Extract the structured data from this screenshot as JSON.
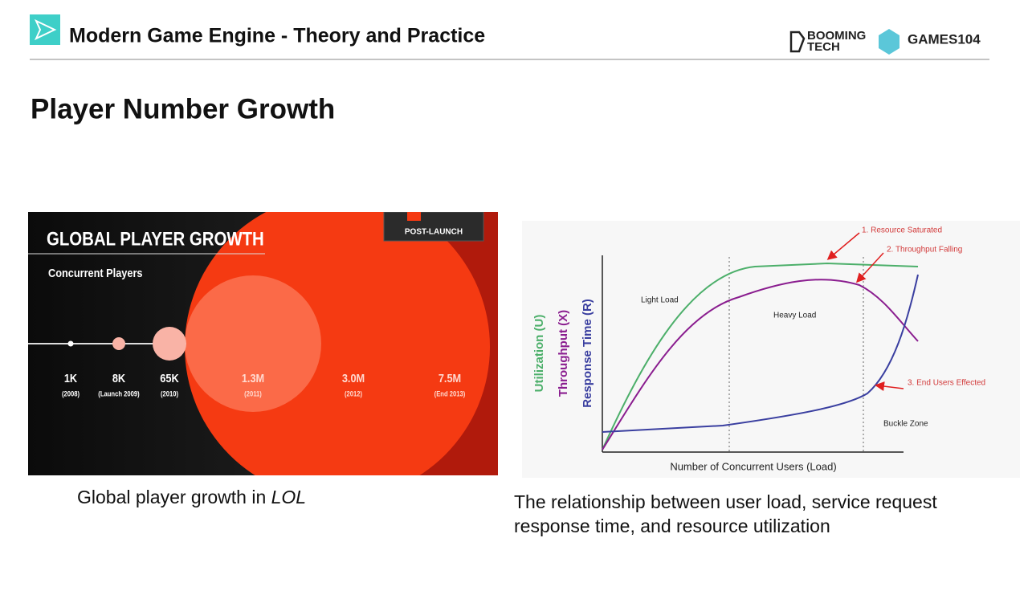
{
  "header": {
    "course": "Modern Game Engine - Theory and Practice",
    "logo_booming": [
      "BOOMING",
      "TECH"
    ],
    "logo_games": "GAMES104"
  },
  "title": "Player Number Growth",
  "left_figure": {
    "title": "GLOBAL PLAYER GROWTH",
    "subtitle": "Concurrent Players",
    "badge": "POST-LAUNCH",
    "milestones": [
      {
        "count": "1K",
        "date": "(2008)"
      },
      {
        "count": "8K",
        "date": "(Launch 2009)"
      },
      {
        "count": "65K",
        "date": "(2010)"
      },
      {
        "count": "1.3M",
        "date": "(2011)"
      },
      {
        "count": "3.0M",
        "date": "(2012)"
      },
      {
        "count": "7.5M",
        "date": "(End 2013)"
      }
    ],
    "caption_prefix": "Global player growth in",
    "caption_em": "LOL"
  },
  "right_figure": {
    "axis_labels": [
      "Utilization (U)",
      "Throughput (X)",
      "Response Time (R)"
    ],
    "x_label": "Number of  Concurrent Users (Load)",
    "zones": [
      "Light Load",
      "Heavy Load",
      "Buckle Zone"
    ],
    "annotations": [
      "1. Resource Saturated",
      "2. Throughput Falling",
      "3. End Users Effected"
    ],
    "caption": "The relationship between user load, service request response time, and resource utilization"
  }
}
